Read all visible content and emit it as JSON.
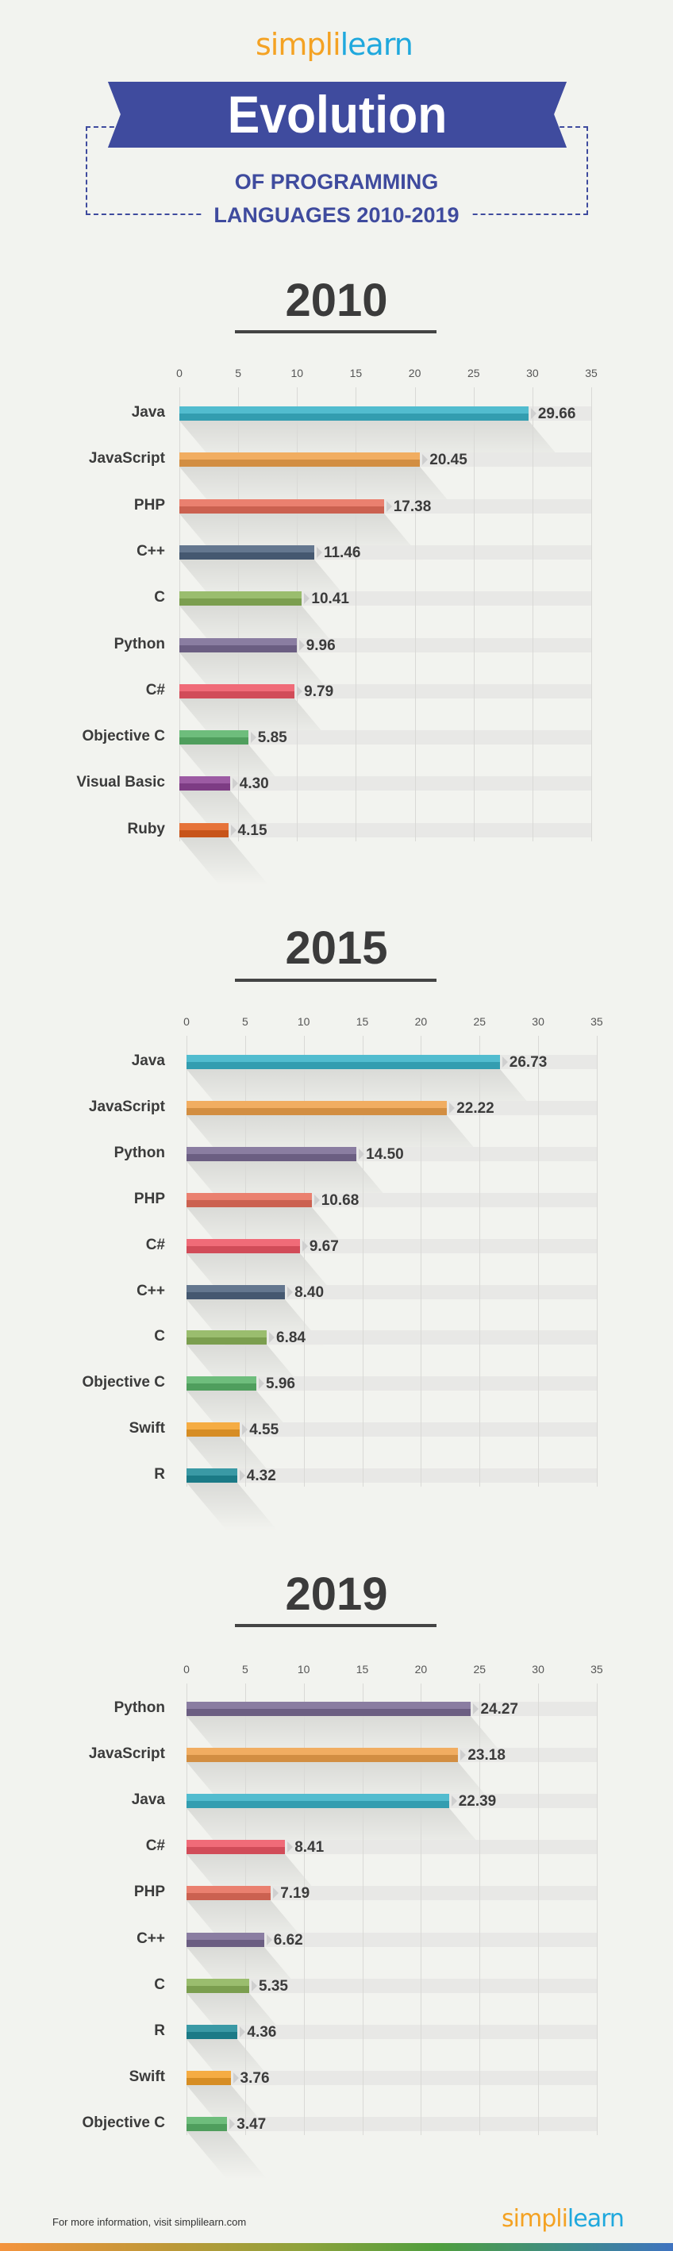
{
  "header": {
    "logo_text": "simplilearn",
    "title": "Evolution",
    "subtitle_line1": "OF PROGRAMMING",
    "subtitle_line2": "LANGUAGES 2010-2019",
    "banner_color": "#3f4b9e"
  },
  "chart_data": [
    {
      "type": "bar",
      "orientation": "horizontal",
      "title": "2010",
      "xlim": [
        0,
        35
      ],
      "ticks": [
        "0",
        "5",
        "10",
        "15",
        "20",
        "25",
        "30",
        "35"
      ],
      "grid": true,
      "categories": [
        "Java",
        "JavaScript",
        "PHP",
        "C++",
        "C",
        "Python",
        "C#",
        "Objective C",
        "Visual Basic",
        "Ruby"
      ],
      "values": [
        29.66,
        20.45,
        17.38,
        11.46,
        10.41,
        9.96,
        9.79,
        5.85,
        4.3,
        4.15
      ],
      "labels": [
        "29.66",
        "20.45",
        "17.38",
        "11.46",
        "10.41",
        "9.96",
        "9.79",
        "5.85",
        "4.30",
        "4.15"
      ],
      "colors": [
        "#3bb3c9",
        "#f0a24c",
        "#e86f5c",
        "#4f6580",
        "#8db45a",
        "#7a6b94",
        "#ee5766",
        "#5bb46a",
        "#8f4597",
        "#e3601e"
      ]
    },
    {
      "type": "bar",
      "orientation": "horizontal",
      "title": "2015",
      "xlim": [
        0,
        35
      ],
      "ticks": [
        "0",
        "5",
        "10",
        "15",
        "20",
        "25",
        "30",
        "35"
      ],
      "grid": true,
      "categories": [
        "Java",
        "JavaScript",
        "Python",
        "PHP",
        "C#",
        "C++",
        "C",
        "Objective C",
        "Swift",
        "R"
      ],
      "values": [
        26.73,
        22.22,
        14.5,
        10.68,
        9.67,
        8.4,
        6.84,
        5.96,
        4.55,
        4.32
      ],
      "labels": [
        "26.73",
        "22.22",
        "14.50",
        "10.68",
        "9.67",
        "8.40",
        "6.84",
        "5.96",
        "4.55",
        "4.32"
      ],
      "colors": [
        "#3bb3c9",
        "#f0a24c",
        "#7a6b94",
        "#e86f5c",
        "#ee5766",
        "#4f6580",
        "#8db45a",
        "#5bb46a",
        "#f4a12a",
        "#1f8b99"
      ]
    },
    {
      "type": "bar",
      "orientation": "horizontal",
      "title": "2019",
      "xlim": [
        0,
        35
      ],
      "ticks": [
        "0",
        "5",
        "10",
        "15",
        "20",
        "25",
        "30",
        "35"
      ],
      "grid": true,
      "categories": [
        "Python",
        "JavaScript",
        "Java",
        "C#",
        "PHP",
        "C++",
        "C",
        "R",
        "Swift",
        "Objective C"
      ],
      "values": [
        24.27,
        23.18,
        22.39,
        8.41,
        7.19,
        6.62,
        5.35,
        4.36,
        3.76,
        3.47
      ],
      "labels": [
        "24.27",
        "23.18",
        "22.39",
        "8.41",
        "7.19",
        "6.62",
        "5.35",
        "4.36",
        "3.76",
        "3.47"
      ],
      "colors": [
        "#7a6b94",
        "#f0a24c",
        "#3bb3c9",
        "#ee5766",
        "#e86f5c",
        "#7a6b94",
        "#8db45a",
        "#1f8b99",
        "#f4a12a",
        "#5bb46a"
      ]
    }
  ],
  "footer": {
    "info_text": "For more information, visit simplilearn.com",
    "logo_text": "simplilearn"
  }
}
